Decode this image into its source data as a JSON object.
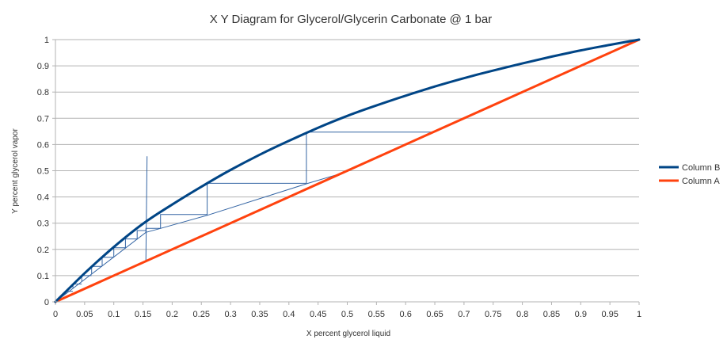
{
  "chart_data": {
    "type": "line",
    "title": "X Y Diagram for Glycerol/Glycerin Carbonate @ 1 bar",
    "xlabel": "X percent glycerol liquid",
    "ylabel": "Y percent glycerol vapor",
    "xlim": [
      0,
      1
    ],
    "ylim": [
      0,
      1
    ],
    "x_ticks": [
      "0",
      "0.05",
      "0.1",
      "0.15",
      "0.2",
      "0.25",
      "0.3",
      "0.35",
      "0.4",
      "0.45",
      "0.5",
      "0.55",
      "0.6",
      "0.65",
      "0.7",
      "0.75",
      "0.8",
      "0.85",
      "0.9",
      "0.95",
      "1"
    ],
    "y_ticks": [
      "0",
      "0.1",
      "0.2",
      "0.3",
      "0.4",
      "0.5",
      "0.6",
      "0.7",
      "0.8",
      "0.9",
      "1"
    ],
    "grid": "horizontal",
    "legend_position": "right",
    "series": [
      {
        "name": "Column B",
        "color": "#004586",
        "x": [
          0,
          0.05,
          0.1,
          0.15,
          0.2,
          0.25,
          0.3,
          0.35,
          0.4,
          0.45,
          0.5,
          0.55,
          0.6,
          0.65,
          0.7,
          0.75,
          0.8,
          0.85,
          0.9,
          0.95,
          1
        ],
        "y": [
          0,
          0.109,
          0.209,
          0.298,
          0.371,
          0.439,
          0.503,
          0.561,
          0.614,
          0.664,
          0.709,
          0.749,
          0.786,
          0.821,
          0.853,
          0.882,
          0.909,
          0.935,
          0.959,
          0.98,
          1
        ]
      },
      {
        "name": "Column A",
        "color": "#ff420e",
        "x": [
          0,
          1
        ],
        "y": [
          0,
          1
        ]
      }
    ],
    "construction_lines": {
      "color": "#3465a4",
      "operating_line": [
        [
          0,
          0
        ],
        [
          0.155,
          0.265
        ],
        [
          0.18,
          0.28
        ],
        [
          0.26,
          0.33
        ],
        [
          0.43,
          0.45
        ],
        [
          0.49,
          0.49
        ]
      ],
      "feed_line": [
        [
          0.155,
          0.155
        ],
        [
          0.157,
          0.555
        ]
      ],
      "steps": [
        [
          [
            0.43,
            0.45
          ],
          [
            0.43,
            0.647
          ],
          [
            0.65,
            0.647
          ]
        ],
        [
          [
            0.26,
            0.33
          ],
          [
            0.26,
            0.452
          ],
          [
            0.43,
            0.452
          ]
        ],
        [
          [
            0.18,
            0.28
          ],
          [
            0.18,
            0.333
          ],
          [
            0.26,
            0.333
          ]
        ],
        [
          [
            0.155,
            0.265
          ],
          [
            0.155,
            0.28
          ],
          [
            0.18,
            0.28
          ]
        ],
        [
          [
            0.14,
            0.238
          ],
          [
            0.14,
            0.272
          ],
          [
            0.155,
            0.272
          ]
        ],
        [
          [
            0.12,
            0.204
          ],
          [
            0.12,
            0.24
          ],
          [
            0.14,
            0.24
          ]
        ],
        [
          [
            0.1,
            0.17
          ],
          [
            0.1,
            0.206
          ],
          [
            0.12,
            0.206
          ]
        ],
        [
          [
            0.08,
            0.136
          ],
          [
            0.08,
            0.17
          ],
          [
            0.1,
            0.17
          ]
        ],
        [
          [
            0.062,
            0.105
          ],
          [
            0.062,
            0.135
          ],
          [
            0.08,
            0.135
          ]
        ],
        [
          [
            0.045,
            0.077
          ],
          [
            0.045,
            0.1
          ],
          [
            0.062,
            0.1
          ]
        ],
        [
          [
            0.03,
            0.051
          ],
          [
            0.03,
            0.068
          ],
          [
            0.045,
            0.068
          ]
        ],
        [
          [
            0.018,
            0.031
          ],
          [
            0.018,
            0.04
          ],
          [
            0.03,
            0.04
          ]
        ]
      ]
    }
  }
}
